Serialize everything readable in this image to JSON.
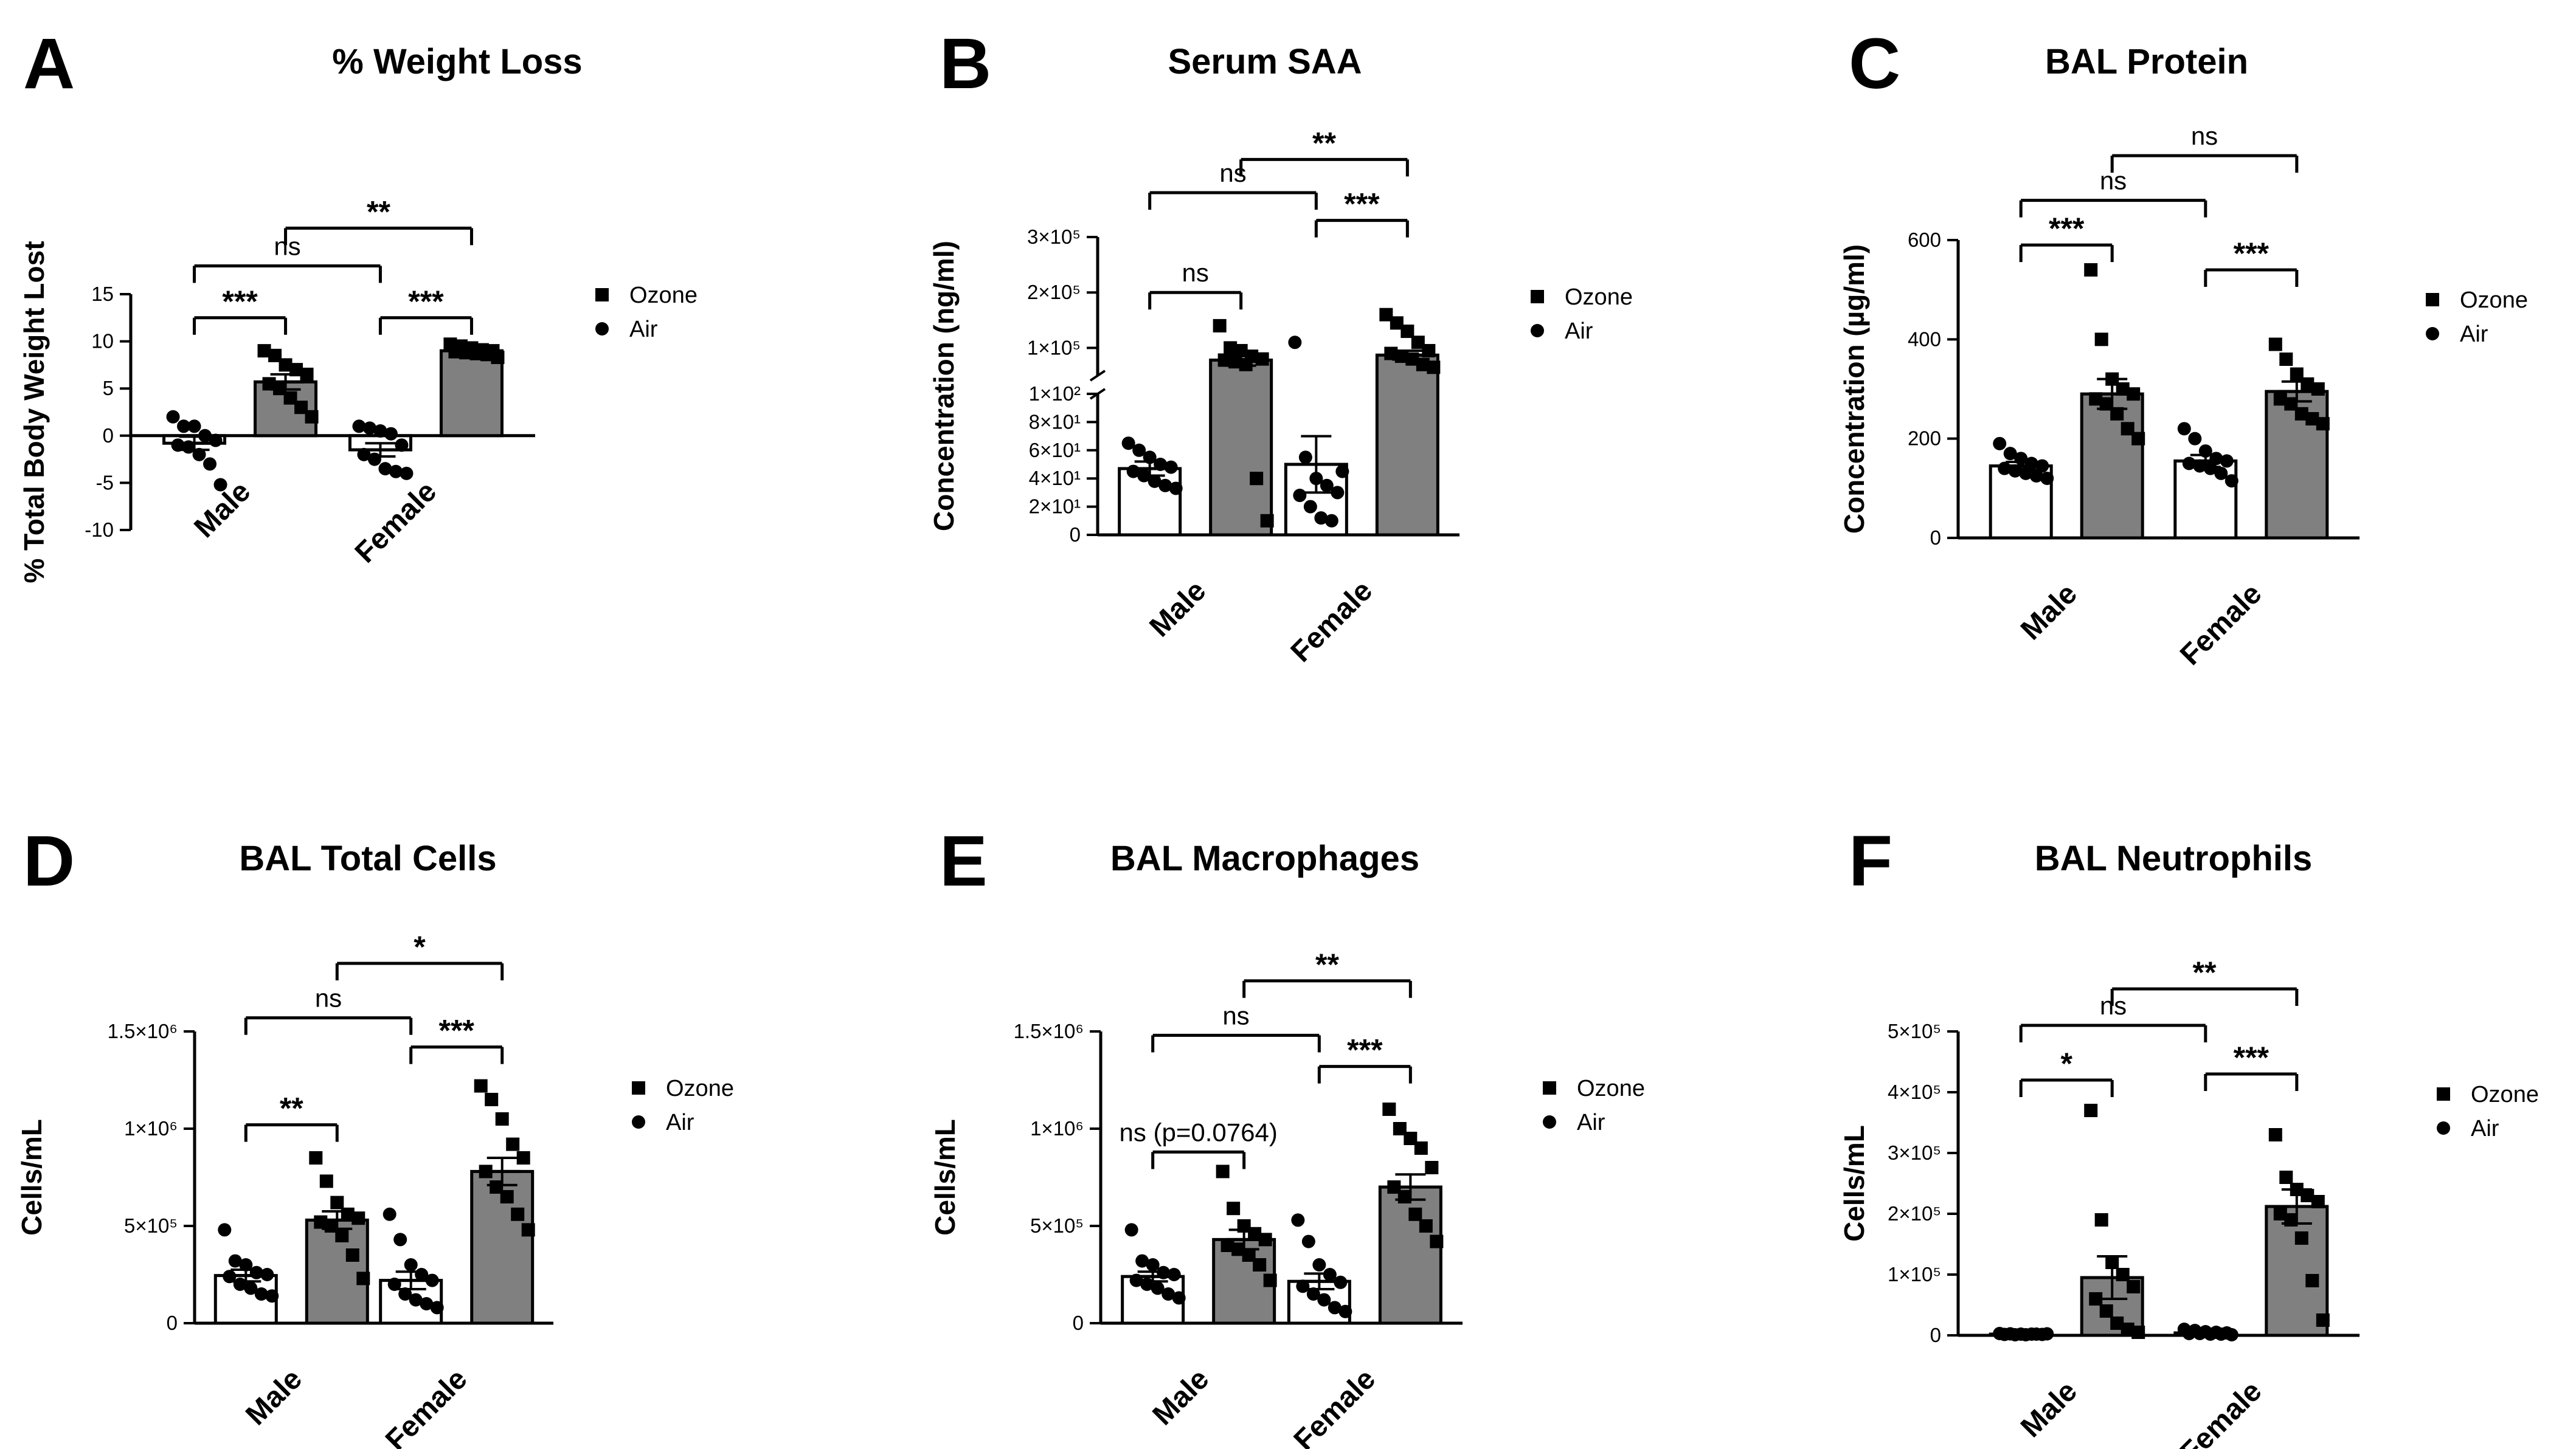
{
  "colors": {
    "ozone_bar": "#808080",
    "air_bar": "#ffffff",
    "ink": "#000000"
  },
  "legend_labels": {
    "ozone": "Ozone",
    "air": "Air"
  },
  "categories": [
    "Male",
    "Female"
  ],
  "chart_data": [
    {
      "panel": "A",
      "type": "bar",
      "title": "% Weight Loss",
      "ylabel": "% Total Body Weight Lost",
      "ylim": [
        -10,
        15
      ],
      "scale": "linear",
      "zero_line": "dotted",
      "yticks": [
        {
          "v": -10,
          "t": "-10"
        },
        {
          "v": -5,
          "t": "-5"
        },
        {
          "v": 0,
          "t": "0"
        },
        {
          "v": 5,
          "t": "5"
        },
        {
          "v": 10,
          "t": "10"
        },
        {
          "v": 15,
          "t": "15"
        }
      ],
      "categories": [
        "Male",
        "Female"
      ],
      "series": [
        {
          "name": "Air",
          "means": [
            -0.8,
            -1.5
          ],
          "sem": [
            0.7,
            0.7
          ],
          "points": [
            [
              2,
              1,
              1,
              0,
              -0.5,
              -1,
              -1.2,
              -2,
              -3,
              -5.2
            ],
            [
              1,
              0.8,
              0.5,
              0.2,
              -1,
              -2,
              -2.5,
              -3.5,
              -3.8,
              -4
            ]
          ]
        },
        {
          "name": "Ozone",
          "means": [
            5.7,
            9.0
          ],
          "sem": [
            0.8,
            0.2
          ],
          "points": [
            [
              9,
              8.5,
              7.5,
              7,
              6.5,
              5.5,
              5,
              4,
              3,
              2
            ],
            [
              9.7,
              9.5,
              9.3,
              9.1,
              9,
              8.9,
              8.8,
              8.7,
              8.6,
              8.3
            ]
          ]
        }
      ],
      "comparisons": [
        {
          "from": [
            0,
            "Air"
          ],
          "to": [
            0,
            "Ozone"
          ],
          "label": "***",
          "level": 12.5
        },
        {
          "from": [
            1,
            "Air"
          ],
          "to": [
            1,
            "Ozone"
          ],
          "label": "***",
          "level": 12.5
        },
        {
          "from": [
            0,
            "Air"
          ],
          "to": [
            1,
            "Air"
          ],
          "label": "ns",
          "level": 18
        },
        {
          "from": [
            0,
            "Ozone"
          ],
          "to": [
            1,
            "Ozone"
          ],
          "label": "**",
          "level": 22
        }
      ]
    },
    {
      "panel": "B",
      "type": "bar",
      "title": "Serum SAA",
      "ylabel": "Concentration (ng/ml)",
      "scale": "broken",
      "lower_range": [
        0,
        100
      ],
      "upper_range": [
        50000,
        300000
      ],
      "yticks": [
        {
          "v": 0,
          "t": "0"
        },
        {
          "v": 20,
          "t": "2×10¹"
        },
        {
          "v": 40,
          "t": "4×10¹"
        },
        {
          "v": 60,
          "t": "6×10¹"
        },
        {
          "v": 80,
          "t": "8×10¹"
        },
        {
          "v": 100,
          "t": "1×10²"
        },
        {
          "v": 100000,
          "t": "1×10⁵"
        },
        {
          "v": 200000,
          "t": "2×10⁵"
        },
        {
          "v": 300000,
          "t": "3×10⁵"
        }
      ],
      "categories": [
        "Male",
        "Female"
      ],
      "series": [
        {
          "name": "Air",
          "means": [
            47,
            50
          ],
          "sem": [
            5,
            20
          ],
          "points": [
            [
              65,
              60,
              55,
              50,
              48,
              45,
              42,
              38,
              35,
              33
            ],
            [
              110000,
              55,
              40,
              35,
              30,
              28,
              20,
              12,
              10,
              45
            ]
          ]
        },
        {
          "name": "Ozone",
          "means": [
            78000,
            87000
          ],
          "sem": [
            10000,
            8000
          ],
          "points": [
            [
              140000,
              100000,
              95000,
              85000,
              80000,
              78000,
              75000,
              70000,
              40,
              10
            ],
            [
              160000,
              145000,
              130000,
              110000,
              95000,
              90000,
              85000,
              80000,
              70000,
              65000
            ]
          ]
        }
      ],
      "comparisons": [
        {
          "from": [
            0,
            "Air"
          ],
          "to": [
            0,
            "Ozone"
          ],
          "label": "ns",
          "level": 200000
        },
        {
          "from": [
            1,
            "Air"
          ],
          "to": [
            1,
            "Ozone"
          ],
          "label": "***",
          "level": 330000
        },
        {
          "from": [
            0,
            "Air"
          ],
          "to": [
            1,
            "Air"
          ],
          "label": "ns",
          "level": 380000
        },
        {
          "from": [
            0,
            "Ozone"
          ],
          "to": [
            1,
            "Ozone"
          ],
          "label": "**",
          "level": 440000
        }
      ]
    },
    {
      "panel": "C",
      "type": "bar",
      "title": "BAL Protein",
      "ylabel": "Concentration (µg/ml)",
      "ylim": [
        0,
        600
      ],
      "scale": "linear",
      "yticks": [
        {
          "v": 0,
          "t": "0"
        },
        {
          "v": 200,
          "t": "200"
        },
        {
          "v": 400,
          "t": "400"
        },
        {
          "v": 600,
          "t": "600"
        }
      ],
      "categories": [
        "Male",
        "Female"
      ],
      "series": [
        {
          "name": "Air",
          "means": [
            145,
            155
          ],
          "sem": [
            8,
            12
          ],
          "points": [
            [
              190,
              170,
              160,
              150,
              145,
              140,
              135,
              130,
              125,
              120
            ],
            [
              220,
              200,
              175,
              160,
              155,
              150,
              145,
              140,
              130,
              115
            ]
          ]
        },
        {
          "name": "Ozone",
          "means": [
            290,
            295
          ],
          "sem": [
            30,
            20
          ],
          "points": [
            [
              540,
              400,
              320,
              300,
              290,
              280,
              270,
              250,
              220,
              200
            ],
            [
              390,
              360,
              330,
              310,
              300,
              280,
              270,
              250,
              240,
              230
            ]
          ]
        }
      ],
      "comparisons": [
        {
          "from": [
            0,
            "Air"
          ],
          "to": [
            0,
            "Ozone"
          ],
          "label": "***",
          "level": 590
        },
        {
          "from": [
            1,
            "Air"
          ],
          "to": [
            1,
            "Ozone"
          ],
          "label": "***",
          "level": 540
        },
        {
          "from": [
            0,
            "Air"
          ],
          "to": [
            1,
            "Air"
          ],
          "label": "ns",
          "level": 680
        },
        {
          "from": [
            0,
            "Ozone"
          ],
          "to": [
            1,
            "Ozone"
          ],
          "label": "ns",
          "level": 770
        }
      ]
    },
    {
      "panel": "D",
      "type": "bar",
      "title": "BAL Total Cells",
      "ylabel": "Cells/mL",
      "ylim": [
        0,
        1500000
      ],
      "scale": "linear",
      "yticks": [
        {
          "v": 0,
          "t": "0"
        },
        {
          "v": 500000,
          "t": "5×10⁵"
        },
        {
          "v": 1000000,
          "t": "1×10⁶"
        },
        {
          "v": 1500000,
          "t": "1.5×10⁶"
        }
      ],
      "categories": [
        "Male",
        "Female"
      ],
      "series": [
        {
          "name": "Air",
          "means": [
            245000,
            220000
          ],
          "sem": [
            30000,
            45000
          ],
          "points": [
            [
              480000,
              320000,
              300000,
              260000,
              250000,
              240000,
              200000,
              180000,
              150000,
              140000
            ],
            [
              560000,
              430000,
              300000,
              250000,
              220000,
              200000,
              150000,
              120000,
              100000,
              80000
            ]
          ]
        },
        {
          "name": "Ozone",
          "means": [
            530000,
            780000
          ],
          "sem": [
            45000,
            70000
          ],
          "points": [
            [
              850000,
              730000,
              620000,
              560000,
              540000,
              520000,
              500000,
              450000,
              350000,
              230000
            ],
            [
              1220000,
              1150000,
              1050000,
              920000,
              850000,
              780000,
              700000,
              650000,
              560000,
              480000
            ]
          ]
        }
      ],
      "comparisons": [
        {
          "from": [
            0,
            "Air"
          ],
          "to": [
            0,
            "Ozone"
          ],
          "label": "**",
          "level": 1020000
        },
        {
          "from": [
            1,
            "Air"
          ],
          "to": [
            1,
            "Ozone"
          ],
          "label": "***",
          "level": 1420000
        },
        {
          "from": [
            0,
            "Air"
          ],
          "to": [
            1,
            "Air"
          ],
          "label": "ns",
          "level": 1570000
        },
        {
          "from": [
            0,
            "Ozone"
          ],
          "to": [
            1,
            "Ozone"
          ],
          "label": "*",
          "level": 1850000
        }
      ]
    },
    {
      "panel": "E",
      "type": "bar",
      "title": "BAL Macrophages",
      "ylabel": "Cells/mL",
      "ylim": [
        0,
        1500000
      ],
      "scale": "linear",
      "yticks": [
        {
          "v": 0,
          "t": "0"
        },
        {
          "v": 500000,
          "t": "5×10⁵"
        },
        {
          "v": 1000000,
          "t": "1×10⁶"
        },
        {
          "v": 1500000,
          "t": "1.5×10⁶"
        }
      ],
      "categories": [
        "Male",
        "Female"
      ],
      "series": [
        {
          "name": "Air",
          "means": [
            240000,
            215000
          ],
          "sem": [
            25000,
            40000
          ],
          "points": [
            [
              480000,
              320000,
              300000,
              260000,
              250000,
              220000,
              200000,
              180000,
              150000,
              130000
            ],
            [
              530000,
              420000,
              300000,
              250000,
              210000,
              190000,
              150000,
              120000,
              80000,
              60000
            ]
          ]
        },
        {
          "name": "Ozone",
          "means": [
            430000,
            700000
          ],
          "sem": [
            50000,
            65000
          ],
          "points": [
            [
              780000,
              590000,
              500000,
              460000,
              430000,
              400000,
              380000,
              350000,
              300000,
              220000
            ],
            [
              1100000,
              1000000,
              950000,
              900000,
              800000,
              700000,
              650000,
              560000,
              500000,
              420000
            ]
          ]
        }
      ],
      "comparisons": [
        {
          "from": [
            0,
            "Air"
          ],
          "to": [
            0,
            "Ozone"
          ],
          "label": "ns (p=0.0764)",
          "level": 880000
        },
        {
          "from": [
            1,
            "Air"
          ],
          "to": [
            1,
            "Ozone"
          ],
          "label": "***",
          "level": 1320000
        },
        {
          "from": [
            0,
            "Air"
          ],
          "to": [
            1,
            "Air"
          ],
          "label": "ns",
          "level": 1480000
        },
        {
          "from": [
            0,
            "Ozone"
          ],
          "to": [
            1,
            "Ozone"
          ],
          "label": "**",
          "level": 1760000
        }
      ]
    },
    {
      "panel": "F",
      "type": "bar",
      "title": "BAL Neutrophils",
      "ylabel": "Cells/mL",
      "ylim": [
        0,
        500000
      ],
      "scale": "linear",
      "yticks": [
        {
          "v": 0,
          "t": "0"
        },
        {
          "v": 100000,
          "t": "1×10⁵"
        },
        {
          "v": 200000,
          "t": "2×10⁵"
        },
        {
          "v": 300000,
          "t": "3×10⁵"
        },
        {
          "v": 400000,
          "t": "4×10⁵"
        },
        {
          "v": 500000,
          "t": "5×10⁵"
        }
      ],
      "categories": [
        "Male",
        "Female"
      ],
      "series": [
        {
          "name": "Air",
          "means": [
            2000,
            4000
          ],
          "sem": [
            500,
            1000
          ],
          "points": [
            [
              3000,
              2500,
              2000,
              2000,
              1500,
              1500,
              1000,
              1000,
              2000,
              2500
            ],
            [
              10000,
              8000,
              6000,
              5000,
              4000,
              3000,
              3000,
              2000,
              2000,
              1000
            ]
          ]
        },
        {
          "name": "Ozone",
          "means": [
            95000,
            212000
          ],
          "sem": [
            35000,
            28000
          ],
          "points": [
            [
              370000,
              190000,
              120000,
              100000,
              80000,
              60000,
              40000,
              20000,
              10000,
              5000
            ],
            [
              330000,
              260000,
              240000,
              230000,
              220000,
              200000,
              190000,
              160000,
              90000,
              25000
            ]
          ]
        }
      ],
      "comparisons": [
        {
          "from": [
            0,
            "Air"
          ],
          "to": [
            0,
            "Ozone"
          ],
          "label": "*",
          "level": 420000
        },
        {
          "from": [
            1,
            "Air"
          ],
          "to": [
            1,
            "Ozone"
          ],
          "label": "***",
          "level": 430000
        },
        {
          "from": [
            0,
            "Air"
          ],
          "to": [
            1,
            "Air"
          ],
          "label": "ns",
          "level": 510000
        },
        {
          "from": [
            0,
            "Ozone"
          ],
          "to": [
            1,
            "Ozone"
          ],
          "label": "**",
          "level": 570000
        }
      ]
    }
  ]
}
